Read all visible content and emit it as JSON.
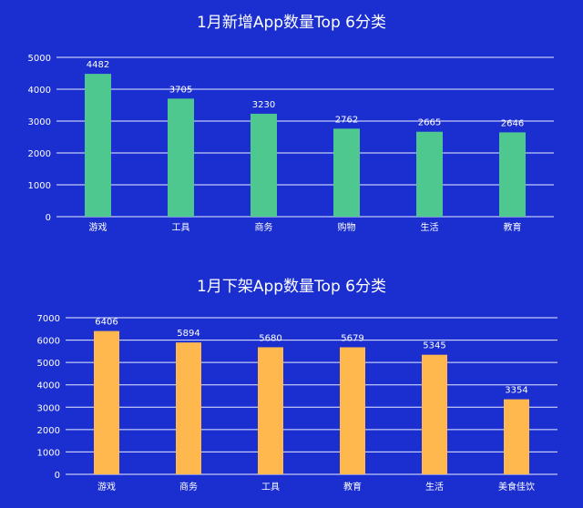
{
  "colors": {
    "background": "#1b2fd0",
    "bar_new": "#4fc88f",
    "bar_removed": "#ffb84d",
    "text": "#ffffff",
    "grid": "#e8ecff"
  },
  "chart_data": [
    {
      "type": "bar",
      "title": "1月新增App数量Top 6分类",
      "categories": [
        "游戏",
        "工具",
        "商务",
        "购物",
        "生活",
        "教育"
      ],
      "values": [
        4482,
        3705,
        3230,
        2762,
        2665,
        2646
      ],
      "yticks": [
        0,
        1000,
        2000,
        3000,
        4000,
        5000
      ],
      "ylim": [
        0,
        5000
      ],
      "grid": true,
      "xlabel": "",
      "ylabel": ""
    },
    {
      "type": "bar",
      "title": "1月下架App数量Top 6分类",
      "categories": [
        "游戏",
        "商务",
        "工具",
        "教育",
        "生活",
        "美食佳饮"
      ],
      "values": [
        6406,
        5894,
        5680,
        5679,
        5345,
        3354
      ],
      "yticks": [
        0,
        1000,
        2000,
        3000,
        4000,
        5000,
        6000,
        7000
      ],
      "ylim": [
        0,
        7000
      ],
      "grid": true,
      "xlabel": "",
      "ylabel": ""
    }
  ]
}
